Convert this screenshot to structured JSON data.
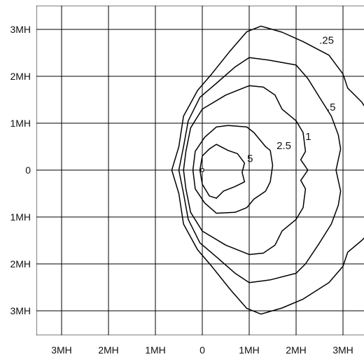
{
  "chart_data": {
    "type": "contour",
    "title": "",
    "xlabel": "",
    "ylabel": "",
    "xlim": [
      -3.5,
      3.5
    ],
    "ylim": [
      -3.5,
      3.5
    ],
    "grid": true,
    "x_ticks": [
      {
        "value": -3,
        "label": "3MH"
      },
      {
        "value": -2,
        "label": "2MH"
      },
      {
        "value": -1,
        "label": "1MH"
      },
      {
        "value": 0,
        "label": "0"
      },
      {
        "value": 1,
        "label": "1MH"
      },
      {
        "value": 2,
        "label": "2MH"
      },
      {
        "value": 3,
        "label": "3MH"
      }
    ],
    "y_ticks": [
      {
        "value": 3,
        "label": "3MH"
      },
      {
        "value": 2,
        "label": "2MH"
      },
      {
        "value": 1,
        "label": "1MH"
      },
      {
        "value": 0,
        "label": "0"
      },
      {
        "value": -1,
        "label": "1MH"
      },
      {
        "value": -2,
        "label": "2MH"
      },
      {
        "value": -3,
        "label": "3MH"
      }
    ],
    "source_point": [
      0,
      0
    ],
    "series": [
      {
        "name": ".25",
        "label_at": [
          2.65,
          2.77
        ],
        "points": [
          [
            1.25,
            3.07
          ],
          [
            1.7,
            2.94
          ],
          [
            2.15,
            2.74
          ],
          [
            2.7,
            2.45
          ],
          [
            3.0,
            2.05
          ],
          [
            3.1,
            1.75
          ],
          [
            3.4,
            1.45
          ],
          [
            3.5,
            1.3
          ],
          [
            3.5,
            -1.4
          ],
          [
            3.4,
            -1.5
          ],
          [
            3.1,
            -1.75
          ],
          [
            3.0,
            -2.05
          ],
          [
            2.7,
            -2.4
          ],
          [
            2.15,
            -2.75
          ],
          [
            1.7,
            -2.94
          ],
          [
            1.25,
            -3.07
          ],
          [
            0.95,
            -2.95
          ],
          [
            0.6,
            -2.55
          ],
          [
            0.2,
            -2.05
          ],
          [
            -0.1,
            -1.7
          ],
          [
            -0.4,
            -1.15
          ],
          [
            -0.5,
            -0.5
          ],
          [
            -0.65,
            0
          ],
          [
            -0.5,
            0.5
          ],
          [
            -0.4,
            1.15
          ],
          [
            -0.1,
            1.7
          ],
          [
            0.2,
            2.05
          ],
          [
            0.6,
            2.55
          ],
          [
            0.95,
            2.95
          ]
        ]
      },
      {
        "name": ".5",
        "label_at": [
          2.75,
          1.34
        ],
        "points": [
          [
            1.0,
            2.4
          ],
          [
            1.45,
            2.34
          ],
          [
            2.0,
            2.24
          ],
          [
            2.25,
            1.95
          ],
          [
            2.5,
            1.55
          ],
          [
            2.75,
            1.15
          ],
          [
            2.9,
            0.75
          ],
          [
            2.95,
            0.45
          ],
          [
            2.85,
            0
          ],
          [
            2.95,
            -0.45
          ],
          [
            2.9,
            -0.75
          ],
          [
            2.75,
            -1.15
          ],
          [
            2.5,
            -1.55
          ],
          [
            2.2,
            -2.0
          ],
          [
            2.0,
            -2.2
          ],
          [
            1.45,
            -2.34
          ],
          [
            1.0,
            -2.4
          ],
          [
            0.7,
            -2.2
          ],
          [
            0.3,
            -1.85
          ],
          [
            -0.05,
            -1.55
          ],
          [
            -0.3,
            -1.05
          ],
          [
            -0.4,
            -0.5
          ],
          [
            -0.5,
            0
          ],
          [
            -0.4,
            0.5
          ],
          [
            -0.3,
            1.05
          ],
          [
            -0.05,
            1.55
          ],
          [
            0.3,
            1.85
          ],
          [
            0.7,
            2.2
          ]
        ]
      },
      {
        "name": "1",
        "label_at": [
          2.26,
          0.72
        ],
        "points": [
          [
            1.0,
            1.8
          ],
          [
            1.3,
            1.77
          ],
          [
            1.55,
            1.6
          ],
          [
            1.7,
            1.3
          ],
          [
            2.0,
            1.05
          ],
          [
            2.15,
            0.8
          ],
          [
            2.2,
            0.4
          ],
          [
            2.1,
            0.22
          ],
          [
            2.25,
            0
          ],
          [
            2.1,
            -0.22
          ],
          [
            2.2,
            -0.4
          ],
          [
            2.15,
            -0.8
          ],
          [
            2.0,
            -1.05
          ],
          [
            1.7,
            -1.3
          ],
          [
            1.55,
            -1.6
          ],
          [
            1.3,
            -1.77
          ],
          [
            1.0,
            -1.8
          ],
          [
            0.5,
            -1.6
          ],
          [
            0.0,
            -1.3
          ],
          [
            -0.25,
            -0.9
          ],
          [
            -0.35,
            -0.4
          ],
          [
            -0.4,
            0
          ],
          [
            -0.35,
            0.4
          ],
          [
            -0.25,
            0.9
          ],
          [
            0.0,
            1.3
          ],
          [
            0.5,
            1.6
          ]
        ]
      },
      {
        "name": "2.5",
        "label_at": [
          1.74,
          0.52
        ],
        "points": [
          [
            0.55,
            0.95
          ],
          [
            0.95,
            0.92
          ],
          [
            1.1,
            0.8
          ],
          [
            1.35,
            0.5
          ],
          [
            1.45,
            0.42
          ],
          [
            1.5,
            0.1
          ],
          [
            1.45,
            -0.25
          ],
          [
            1.35,
            -0.45
          ],
          [
            1.1,
            -0.62
          ],
          [
            0.95,
            -0.8
          ],
          [
            0.7,
            -0.9
          ],
          [
            0.3,
            -0.92
          ],
          [
            0.05,
            -0.7
          ],
          [
            -0.15,
            -0.4
          ],
          [
            -0.2,
            0
          ],
          [
            -0.15,
            0.4
          ],
          [
            0.05,
            0.7
          ],
          [
            0.3,
            0.92
          ]
        ]
      },
      {
        "name": "5",
        "label_at": [
          1.02,
          0.25
        ],
        "points": [
          [
            0.3,
            0.55
          ],
          [
            0.55,
            0.42
          ],
          [
            0.75,
            0.35
          ],
          [
            0.9,
            0.15
          ],
          [
            0.85,
            -0.05
          ],
          [
            0.9,
            -0.25
          ],
          [
            0.7,
            -0.35
          ],
          [
            0.45,
            -0.45
          ],
          [
            0.3,
            -0.6
          ],
          [
            0.15,
            -0.55
          ],
          [
            0.0,
            -0.3
          ],
          [
            -0.05,
            0
          ],
          [
            0.0,
            0.3
          ],
          [
            0.15,
            0.45
          ]
        ]
      }
    ]
  }
}
